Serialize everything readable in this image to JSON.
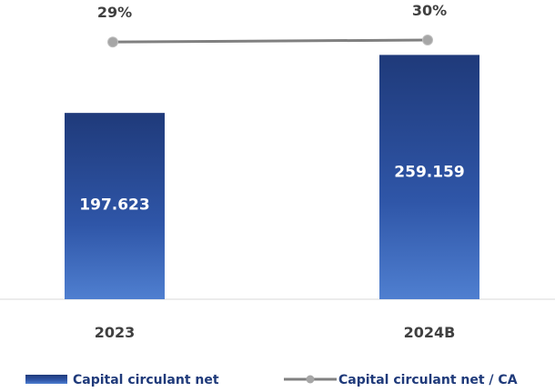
{
  "chart_data": {
    "type": "bar",
    "categories": [
      "2023",
      "2024B"
    ],
    "series": [
      {
        "name": "Capital circulant net",
        "type": "bar",
        "values": [
          197623,
          259159
        ],
        "labels": [
          "197.623",
          "259.159"
        ]
      },
      {
        "name": "Capital circulant net / CA",
        "type": "line",
        "values": [
          29,
          30
        ],
        "labels": [
          "29%",
          "30%"
        ]
      }
    ],
    "title": "",
    "xlabel": "",
    "ylabel": "",
    "legend_position": "bottom",
    "grid": false,
    "colors": {
      "bar_dark": "#1f3a7a",
      "bar_light": "#4f7fd0",
      "line": "#808080",
      "marker": "#a6a6a6",
      "label": "#404040"
    }
  }
}
